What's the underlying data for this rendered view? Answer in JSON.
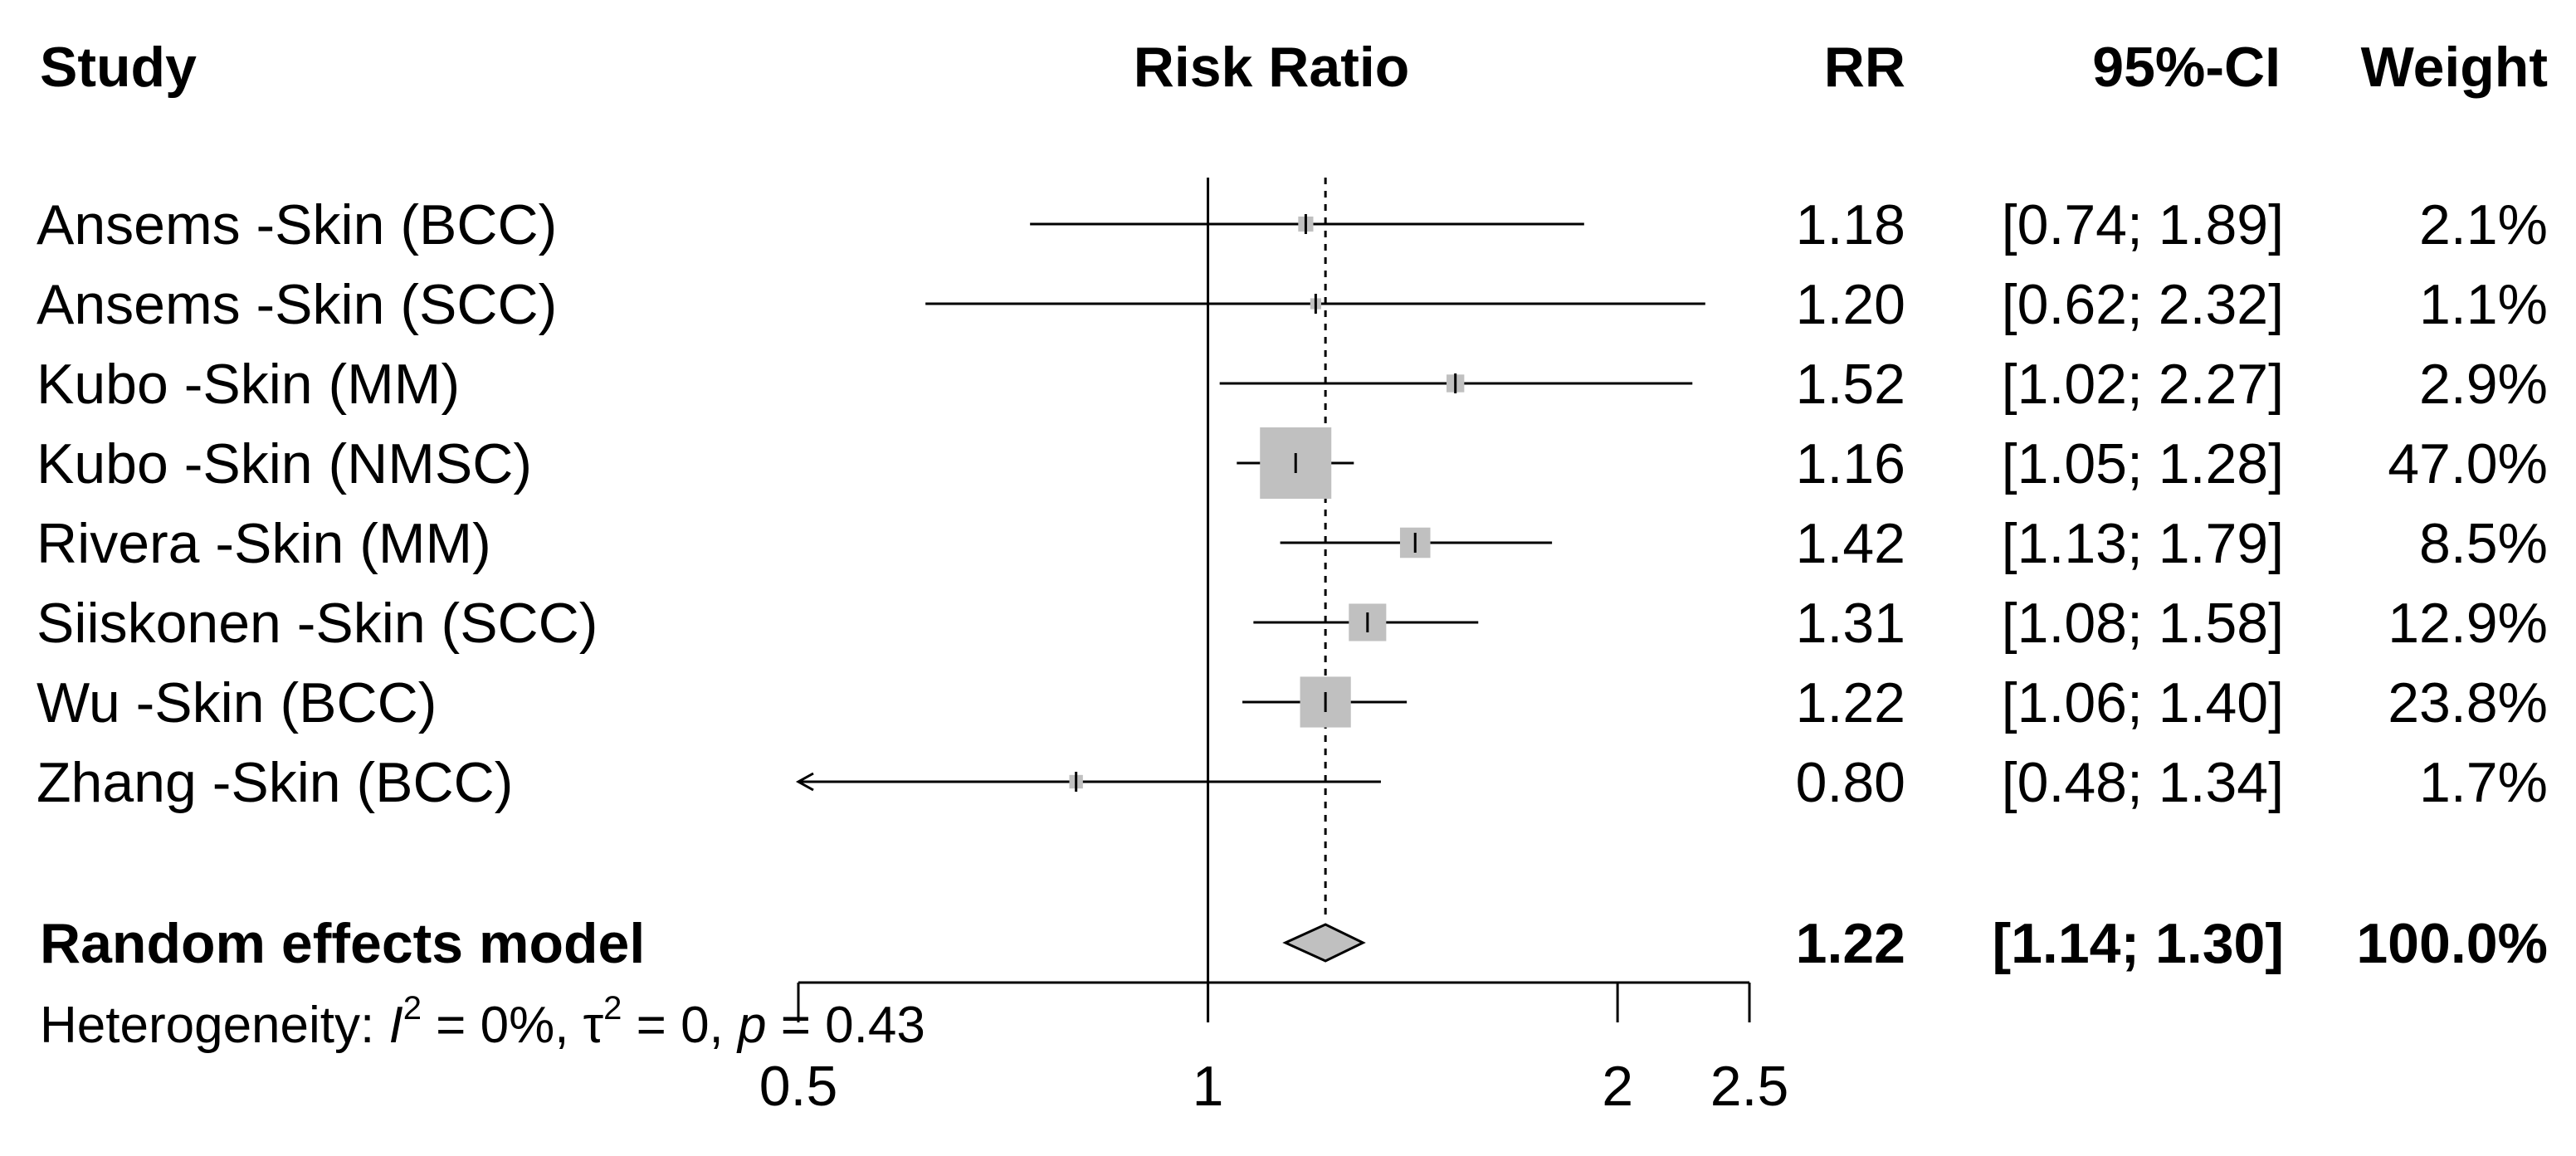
{
  "chart_data": {
    "type": "forest",
    "scale": "log",
    "headers": {
      "study": "Study",
      "effect": "Risk Ratio",
      "rr": "RR",
      "ci": "95%-CI",
      "weight": "Weight"
    },
    "studies": [
      {
        "label": "Ansems -Skin (BCC)",
        "rr": 1.18,
        "lower": 0.74,
        "upper": 1.89,
        "rr_text": "1.18",
        "ci_text": "[0.74; 1.89]",
        "weight": 2.1,
        "weight_text": "2.1%"
      },
      {
        "label": "Ansems -Skin (SCC)",
        "rr": 1.2,
        "lower": 0.62,
        "upper": 2.32,
        "rr_text": "1.20",
        "ci_text": "[0.62; 2.32]",
        "weight": 1.1,
        "weight_text": "1.1%"
      },
      {
        "label": "Kubo -Skin (MM)",
        "rr": 1.52,
        "lower": 1.02,
        "upper": 2.27,
        "rr_text": "1.52",
        "ci_text": "[1.02; 2.27]",
        "weight": 2.9,
        "weight_text": "2.9%"
      },
      {
        "label": "Kubo -Skin (NMSC)",
        "rr": 1.16,
        "lower": 1.05,
        "upper": 1.28,
        "rr_text": "1.16",
        "ci_text": "[1.05; 1.28]",
        "weight": 47.0,
        "weight_text": "47.0%"
      },
      {
        "label": "Rivera -Skin (MM)",
        "rr": 1.42,
        "lower": 1.13,
        "upper": 1.79,
        "rr_text": "1.42",
        "ci_text": "[1.13; 1.79]",
        "weight": 8.5,
        "weight_text": "8.5%"
      },
      {
        "label": "Siiskonen -Skin (SCC)",
        "rr": 1.31,
        "lower": 1.08,
        "upper": 1.58,
        "rr_text": "1.31",
        "ci_text": "[1.08; 1.58]",
        "weight": 12.9,
        "weight_text": "12.9%"
      },
      {
        "label": "Wu -Skin (BCC)",
        "rr": 1.22,
        "lower": 1.06,
        "upper": 1.4,
        "rr_text": "1.22",
        "ci_text": "[1.06; 1.40]",
        "weight": 23.8,
        "weight_text": "23.8%"
      },
      {
        "label": "Zhang -Skin (BCC)",
        "rr": 0.8,
        "lower": 0.48,
        "upper": 1.34,
        "rr_text": "0.80",
        "ci_text": "[0.48; 1.34]",
        "weight": 1.7,
        "weight_text": "1.7%"
      }
    ],
    "pooled": {
      "label": "Random effects model",
      "rr": 1.22,
      "lower": 1.14,
      "upper": 1.3,
      "rr_text": "1.22",
      "ci_text": "[1.14; 1.30]",
      "weight_text": "100.0%"
    },
    "heterogeneity": {
      "prefix": "Heterogeneity: ",
      "i2_symbol": "I",
      "i2_value": " = 0%, ",
      "tau_symbol": "τ",
      "tau_value": " = 0, ",
      "p_symbol": "p",
      "p_value": " = 0.43",
      "superscript": "2"
    },
    "x_axis": {
      "min": 0.5,
      "max": 2.5,
      "ticks": [
        0.5,
        1,
        2,
        2.5
      ],
      "tick_labels": [
        "0.5",
        "1",
        "2",
        "2.5"
      ],
      "null_value": 1
    }
  }
}
